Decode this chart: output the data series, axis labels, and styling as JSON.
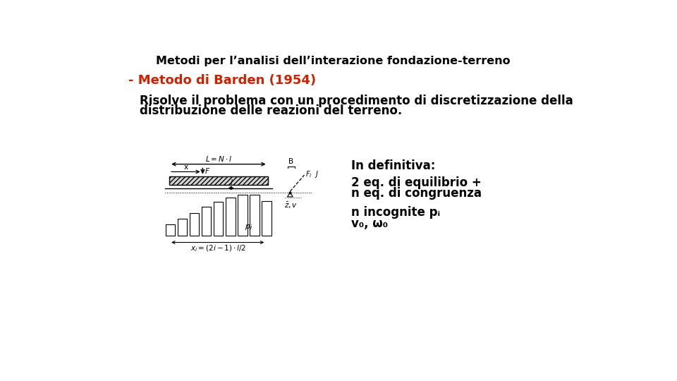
{
  "title": "Metodi per l’analisi dell’interazione fondazione-terreno",
  "subtitle": "- Metodo di Barden (1954)",
  "subtitle_color": "#CC2200",
  "body_line1": "Risolve il problema con un procedimento di discretizzazione della",
  "body_line2": "distribuzione delle reazioni del terreno.",
  "in_definitiva_label": "In definitiva:",
  "line1": "2 eq. di equilibrio +",
  "line2": "n eq. di congruenza",
  "line3": "n incognite pᵢ",
  "line4": "v₀, ω₀",
  "bg_color": "#ffffff",
  "text_color": "#000000",
  "title_fontsize": 11.5,
  "subtitle_fontsize": 13,
  "body_fontsize": 12,
  "content_fontsize": 12,
  "diagram_font": 7.5
}
